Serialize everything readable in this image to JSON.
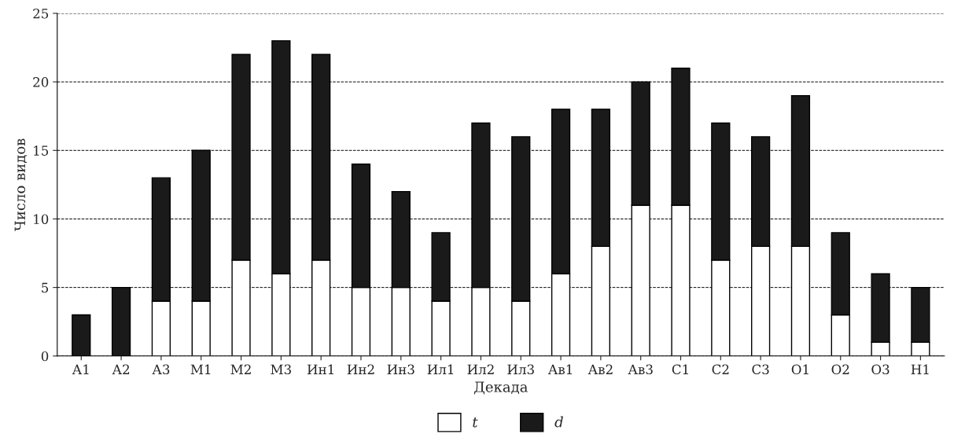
{
  "chart_data": {
    "type": "bar",
    "stacked": true,
    "xlabel": "Декада",
    "ylabel": "Число видов",
    "categories": [
      "А1",
      "А2",
      "А3",
      "М1",
      "М2",
      "М3",
      "Ин1",
      "Ин2",
      "Ин3",
      "Ил1",
      "Ил2",
      "Ил3",
      "Ав1",
      "Ав2",
      "Ав3",
      "С1",
      "С2",
      "С3",
      "О1",
      "О2",
      "О3",
      "Н1"
    ],
    "series": [
      {
        "name": "t",
        "color": "#ffffff",
        "values": [
          0,
          0,
          4,
          4,
          7,
          6,
          7,
          5,
          5,
          4,
          5,
          4,
          6,
          8,
          11,
          11,
          7,
          8,
          8,
          3,
          1,
          1
        ]
      },
      {
        "name": "d",
        "color": "#1a1a1a",
        "values": [
          3,
          5,
          9,
          11,
          15,
          17,
          15,
          9,
          7,
          5,
          12,
          12,
          12,
          10,
          9,
          10,
          10,
          8,
          11,
          6,
          5,
          4
        ]
      }
    ],
    "ylim": [
      0,
      25
    ],
    "yticks": [
      0,
      5,
      10,
      15,
      20,
      25
    ],
    "grid": "y",
    "legend": "bottom"
  }
}
